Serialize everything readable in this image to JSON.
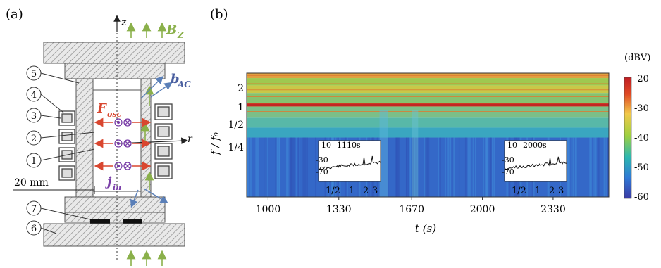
{
  "panel_a": {
    "label": "(a)",
    "axis_z": "z",
    "axis_r": "r",
    "field_B": "B",
    "field_B_sub": "Z",
    "field_b": "b",
    "field_b_sub": "AC",
    "force": "F",
    "force_sub": "osc",
    "current": "j",
    "current_sub": "in",
    "scale_label": "20 mm",
    "parts": [
      "5",
      "4",
      "3",
      "2",
      "1",
      "7",
      "6"
    ],
    "colors": {
      "field": "#8ab04a",
      "force": "#d9462f",
      "current": "#7a3fa8",
      "bac": "#5a7fb8",
      "hatch": "#8a8a8a"
    }
  },
  "panel_b": {
    "label": "(b)",
    "colorbar_unit": "(dBV)",
    "colorbar_ticks": [
      "-20",
      "-30",
      "-40",
      "-50",
      "-60"
    ],
    "inset_left": {
      "label": "1110s",
      "yticks": [
        "10",
        "-30",
        "-70"
      ],
      "xticks": [
        "1/2",
        "1",
        "2",
        "3"
      ]
    },
    "inset_right": {
      "label": "2000s",
      "yticks": [
        "10",
        "-30",
        "-70"
      ],
      "xticks": [
        "1/2",
        "1",
        "2",
        "3"
      ]
    }
  },
  "chart_data": {
    "type": "heatmap",
    "xlabel": "t (s)",
    "ylabel": "f / f₀",
    "x_ticks": [
      1000,
      1330,
      1670,
      2000,
      2330
    ],
    "x_range": [
      900,
      2590
    ],
    "y_ticks": [
      "2",
      "1",
      "1/2",
      "1/4"
    ],
    "z_range_dBV": [
      -60,
      -20
    ],
    "colormap": [
      "#3b3aa5",
      "#2f79d6",
      "#2cb7b0",
      "#9fd040",
      "#f2c94a",
      "#e04a24",
      "#c01d24"
    ],
    "insets": [
      {
        "time_s": 1110,
        "ylim": [
          -70,
          10
        ]
      },
      {
        "time_s": 2000,
        "ylim": [
          -70,
          10
        ]
      }
    ]
  }
}
